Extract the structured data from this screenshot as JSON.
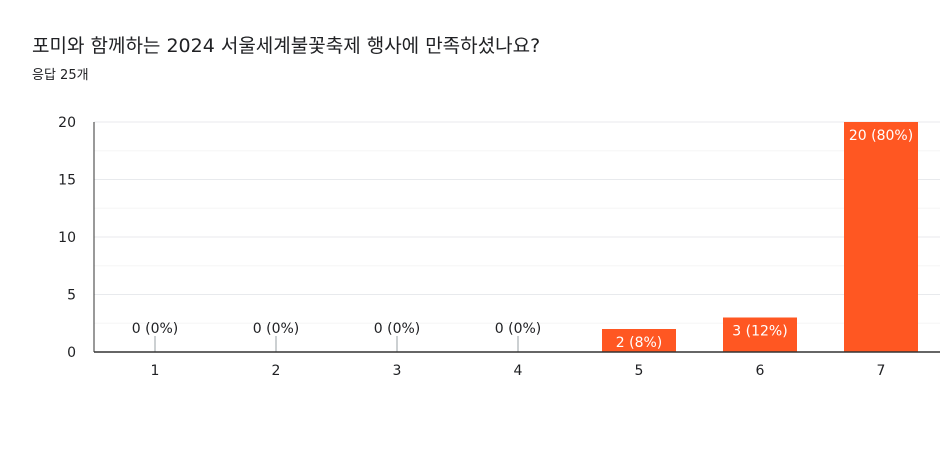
{
  "header": {
    "title": "포미와 함께하는 2024 서울세계불꽃축제 행사에 만족하셨나요?",
    "response_count": "응답 25개"
  },
  "colors": {
    "bar": "#ff5722",
    "grid": "#e8eaed",
    "axis": "#333333",
    "text": "#202124",
    "label_on_bar": "#ffffff"
  },
  "chart_data": {
    "type": "bar",
    "title": "포미와 함께하는 2024 서울세계불꽃축제 행사에 만족하셨나요?",
    "subtitle": "응답 25개",
    "categories": [
      "1",
      "2",
      "3",
      "4",
      "5",
      "6",
      "7"
    ],
    "values": [
      0,
      0,
      0,
      0,
      2,
      3,
      20
    ],
    "data_labels": [
      "0 (0%)",
      "0 (0%)",
      "0 (0%)",
      "0 (0%)",
      "2 (8%)",
      "3 (12%)",
      "20 (80%)"
    ],
    "y_ticks": [
      0,
      5,
      10,
      15,
      20
    ],
    "ylim": [
      0,
      20
    ],
    "grid": true,
    "xlabel": "",
    "ylabel": ""
  }
}
